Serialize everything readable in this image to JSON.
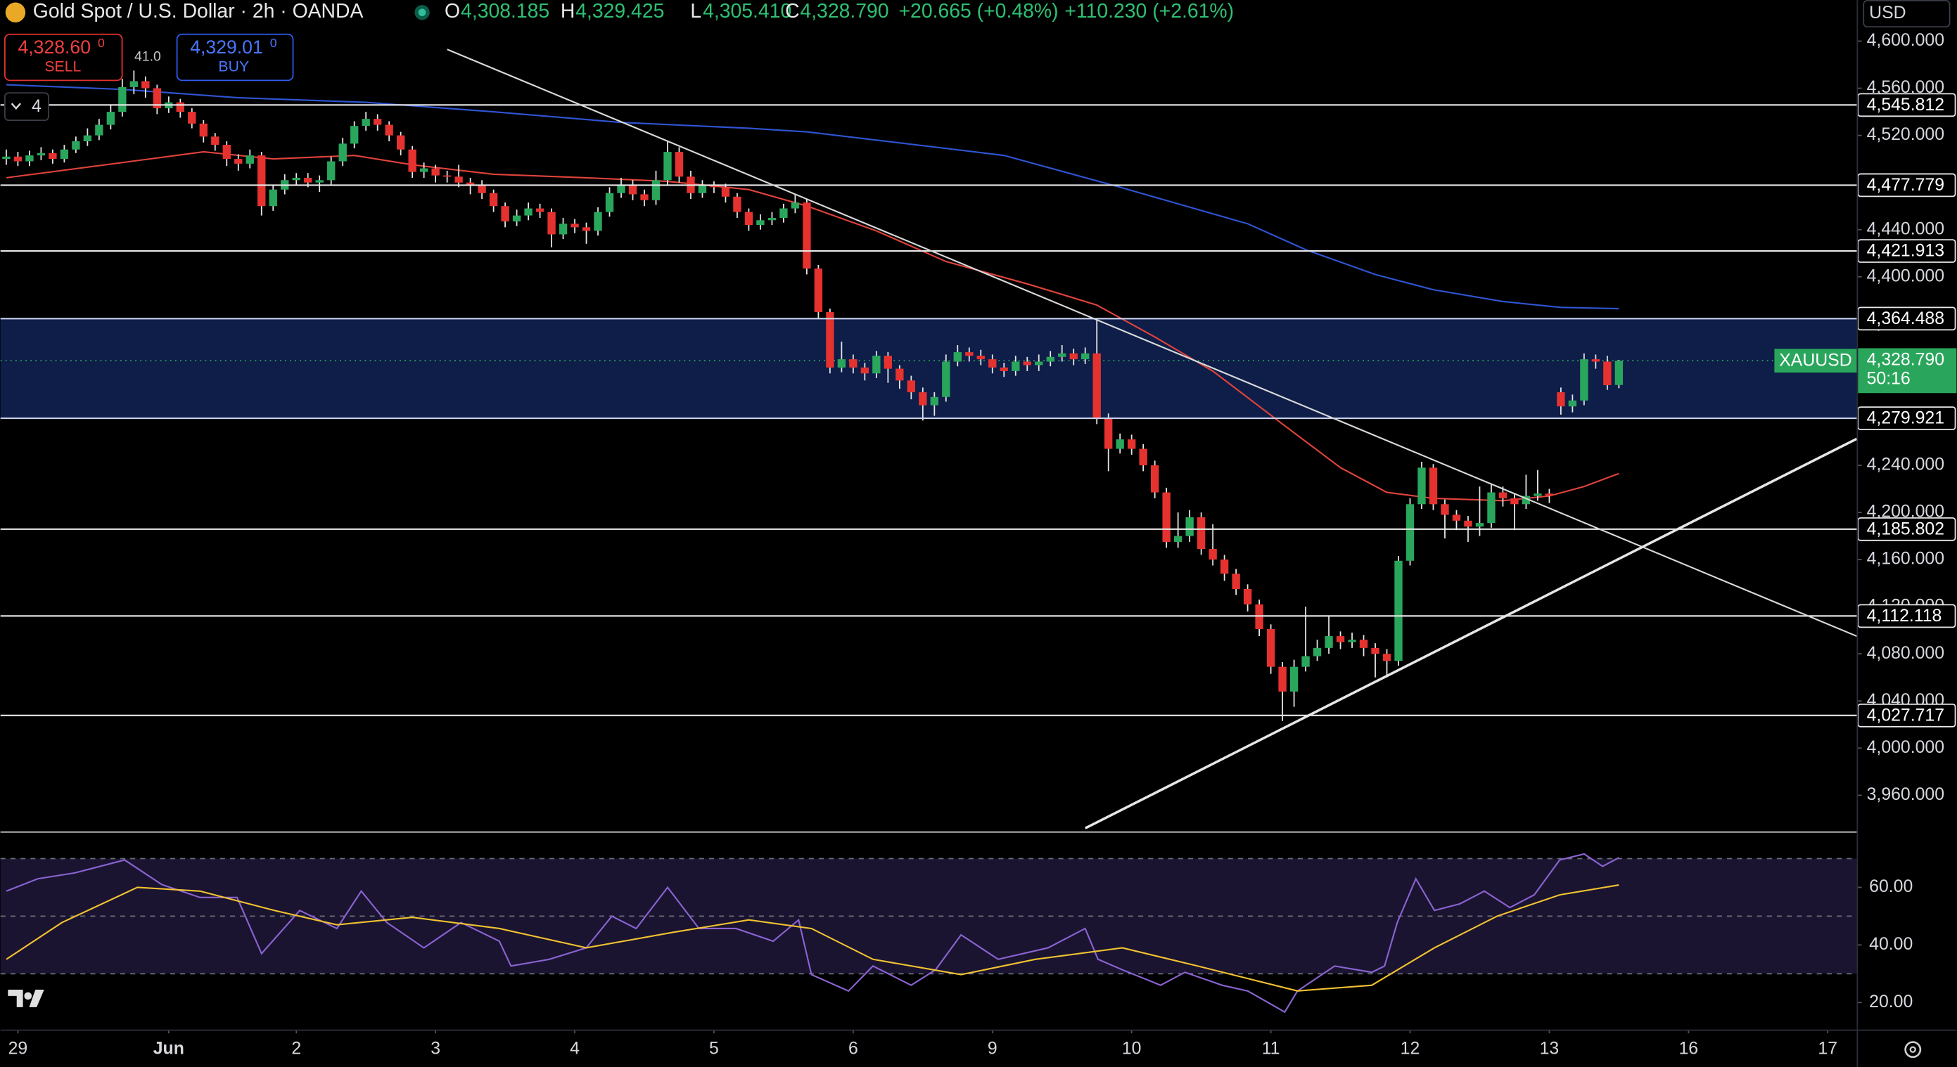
{
  "header": {
    "symbol_title": "Gold Spot / U.S. Dollar · 2h · OANDA",
    "ohlc": [
      {
        "key": "O",
        "value": "4,308.185"
      },
      {
        "key": "H",
        "value": "4,329.425"
      },
      {
        "key": "L",
        "value": "4,305.410"
      },
      {
        "key": "C",
        "value": "4,328.790"
      }
    ],
    "change": "+20.665 (+0.48%)",
    "change_2": "+110.230 (+2.61%)"
  },
  "trade": {
    "sell_price": "4,328.60",
    "sell_digit": "0",
    "sell": "SELL",
    "spread": "41.0",
    "buy_price": "4,329.01",
    "buy_digit": "0",
    "buy": "BUY"
  },
  "indicators_toggle": "4",
  "currency": "USD",
  "chart_data": [
    {
      "type": "candlestick",
      "up_color": "#2aa65c",
      "down_color": "#e5322f",
      "open": [
        4500,
        4502,
        4498,
        4503,
        4505,
        4500,
        4508,
        4515,
        4520,
        4529,
        4540,
        4561,
        4566,
        4560,
        4543,
        4548,
        4540,
        4530,
        4519,
        4512,
        4500,
        4496,
        4503,
        4460,
        4474,
        4482,
        4484,
        4480,
        4482,
        4498,
        4513,
        4528,
        4534,
        4529,
        4520,
        4508,
        4489,
        4492,
        4486,
        4485,
        4480,
        4478,
        4471,
        4460,
        4447,
        4452,
        4458,
        4455,
        4436,
        4445,
        4442,
        4439,
        4455,
        4471,
        4478,
        4470,
        4465,
        4482,
        4506,
        4485,
        4471,
        4478,
        4476,
        4468,
        4455,
        4444,
        4448,
        4450,
        4458,
        4463,
        4407,
        4370,
        4323,
        4330,
        4323,
        4318,
        4333,
        4322,
        4312,
        4302,
        4291,
        4298,
        4328,
        4336,
        4333,
        4330,
        4323,
        4320,
        4328,
        4325,
        4328,
        4332,
        4335,
        4330,
        4335,
        4280,
        4254,
        4262,
        4254,
        4240,
        4217,
        4175,
        4180,
        4196,
        4169,
        4160,
        4148,
        4135,
        4122,
        4101,
        4069,
        4048,
        4069,
        4078,
        4085,
        4095,
        4090,
        4092,
        4085,
        4080,
        4074,
        4159,
        4207,
        4238,
        4207,
        4198,
        4193,
        4188,
        4191,
        4217,
        4212,
        4207,
        4214,
        4216,
        4302,
        4290,
        4295,
        4330,
        4328,
        4308.185
      ],
      "high": [
        4508,
        4506,
        4507,
        4510,
        4508,
        4512,
        4519,
        4526,
        4534,
        4546,
        4568,
        4575,
        4570,
        4563,
        4553,
        4551,
        4543,
        4533,
        4522,
        4515,
        4504,
        4508,
        4506,
        4478,
        4487,
        4488,
        4488,
        4486,
        4502,
        4518,
        4532,
        4540,
        4538,
        4532,
        4523,
        4511,
        4497,
        4495,
        4490,
        4495,
        4484,
        4482,
        4474,
        4463,
        4457,
        4463,
        4462,
        4458,
        4450,
        4449,
        4446,
        4459,
        4476,
        4484,
        4482,
        4474,
        4490,
        4515,
        4510,
        4490,
        4482,
        4481,
        4479,
        4471,
        4458,
        4453,
        4455,
        4462,
        4470,
        4466,
        4410,
        4373,
        4345,
        4334,
        4327,
        4337,
        4336,
        4325,
        4316,
        4306,
        4302,
        4334,
        4342,
        4340,
        4338,
        4334,
        4327,
        4333,
        4332,
        4334,
        4337,
        4342,
        4339,
        4340,
        4365,
        4284,
        4267,
        4266,
        4258,
        4244,
        4221,
        4200,
        4202,
        4200,
        4190,
        4164,
        4152,
        4139,
        4126,
        4105,
        4073,
        4075,
        4120,
        4092,
        4112,
        4099,
        4098,
        4096,
        4089,
        4084,
        4163,
        4212,
        4243,
        4241,
        4211,
        4202,
        4197,
        4222,
        4224,
        4222,
        4216,
        4232,
        4236,
        4220,
        4306,
        4300,
        4335,
        4334,
        4333,
        4329.425
      ],
      "low": [
        4495,
        4494,
        4494,
        4499,
        4496,
        4497,
        4505,
        4511,
        4516,
        4525,
        4536,
        4555,
        4552,
        4538,
        4539,
        4535,
        4526,
        4514,
        4507,
        4494,
        4490,
        4492,
        4452,
        4456,
        4470,
        4478,
        4476,
        4472,
        4478,
        4494,
        4509,
        4524,
        4524,
        4515,
        4503,
        4484,
        4484,
        4480,
        4480,
        4476,
        4470,
        4466,
        4455,
        4442,
        4443,
        4448,
        4450,
        4425,
        4432,
        4437,
        4428,
        4435,
        4451,
        4467,
        4465,
        4460,
        4461,
        4478,
        4480,
        4466,
        4467,
        4471,
        4463,
        4450,
        4439,
        4440,
        4444,
        4446,
        4454,
        4402,
        4365,
        4318,
        4319,
        4318,
        4312,
        4314,
        4310,
        4305,
        4296,
        4278,
        4282,
        4294,
        4324,
        4328,
        4325,
        4318,
        4315,
        4316,
        4320,
        4320,
        4324,
        4328,
        4325,
        4326,
        4275,
        4235,
        4250,
        4249,
        4235,
        4212,
        4170,
        4170,
        4175,
        4164,
        4155,
        4142,
        4130,
        4116,
        4095,
        4063,
        4023,
        4035,
        4065,
        4074,
        4080,
        4084,
        4085,
        4078,
        4060,
        4060,
        4070,
        4155,
        4203,
        4202,
        4178,
        4185,
        4175,
        4180,
        4187,
        4205,
        4185,
        4203,
        4210,
        4208,
        4283,
        4285,
        4291,
        4322,
        4304,
        4305.41
      ],
      "close": [
        4502,
        4498,
        4503,
        4505,
        4500,
        4508,
        4515,
        4520,
        4529,
        4540,
        4561,
        4566,
        4560,
        4543,
        4548,
        4540,
        4530,
        4519,
        4512,
        4500,
        4496,
        4503,
        4460,
        4474,
        4482,
        4484,
        4480,
        4482,
        4498,
        4513,
        4528,
        4534,
        4529,
        4520,
        4508,
        4489,
        4492,
        4486,
        4485,
        4480,
        4478,
        4471,
        4460,
        4447,
        4452,
        4458,
        4455,
        4436,
        4445,
        4442,
        4439,
        4455,
        4471,
        4478,
        4470,
        4465,
        4482,
        4506,
        4485,
        4471,
        4478,
        4476,
        4468,
        4455,
        4444,
        4448,
        4450,
        4458,
        4463,
        4407,
        4370,
        4323,
        4330,
        4323,
        4318,
        4333,
        4322,
        4312,
        4302,
        4291,
        4298,
        4328,
        4336,
        4333,
        4330,
        4323,
        4320,
        4328,
        4325,
        4328,
        4332,
        4335,
        4330,
        4335,
        4280,
        4254,
        4262,
        4254,
        4240,
        4217,
        4175,
        4180,
        4196,
        4169,
        4160,
        4148,
        4135,
        4122,
        4101,
        4069,
        4048,
        4069,
        4078,
        4085,
        4095,
        4090,
        4092,
        4085,
        4080,
        4074,
        4159,
        4207,
        4238,
        4207,
        4198,
        4193,
        4188,
        4191,
        4217,
        4212,
        4207,
        4214,
        4216,
        4214,
        4290,
        4295,
        4330,
        4328,
        4308,
        4328.79
      ],
      "xlim": [
        -0.5,
        159.5
      ],
      "xticks": [
        {
          "value": 1,
          "label": "29"
        },
        {
          "value": 14,
          "label": "Jun"
        },
        {
          "value": 25,
          "label": "2"
        },
        {
          "value": 37,
          "label": "3"
        },
        {
          "value": 49,
          "label": "4"
        },
        {
          "value": 61,
          "label": "5"
        },
        {
          "value": 73,
          "label": "6"
        },
        {
          "value": 85,
          "label": "9"
        },
        {
          "value": 97,
          "label": "10"
        },
        {
          "value": 109,
          "label": "11"
        },
        {
          "value": 121,
          "label": "12"
        },
        {
          "value": 133,
          "label": "13"
        },
        {
          "value": 145,
          "label": "16"
        },
        {
          "value": 157,
          "label": "17"
        }
      ],
      "ylim": [
        3929.3,
        4634.9
      ],
      "yticks": [
        {
          "value": 3960,
          "label": "3,960.000"
        },
        {
          "value": 4000,
          "label": "4,000.000"
        },
        {
          "value": 4040,
          "label": "4,040.000"
        },
        {
          "value": 4080,
          "label": "4,080.000"
        },
        {
          "value": 4120,
          "label": "4,120.000"
        },
        {
          "value": 4160,
          "label": "4,160.000"
        },
        {
          "value": 4200,
          "label": "4,200.000"
        },
        {
          "value": 4240,
          "label": "4,240.000"
        },
        {
          "value": 4280,
          "label": "4,280.000"
        },
        {
          "value": 4320,
          "label": "4,320.000"
        },
        {
          "value": 4360,
          "label": "4,360.000"
        },
        {
          "value": 4400,
          "label": "4,400.000"
        },
        {
          "value": 4440,
          "label": "4,440.000"
        },
        {
          "value": 4480,
          "label": "4,480.000"
        },
        {
          "value": 4520,
          "label": "4,520.000"
        },
        {
          "value": 4560,
          "label": "4,560.000"
        },
        {
          "value": 4600,
          "label": "4,600.000"
        }
      ],
      "grid": false,
      "levels": [
        {
          "value": 4545.812,
          "label": "4,545.812"
        },
        {
          "value": 4477.779,
          "label": "4,477.779"
        },
        {
          "value": 4421.913,
          "label": "4,421.913"
        },
        {
          "value": 4364.488,
          "label": "4,364.488",
          "zone": true
        },
        {
          "value": 4279.921,
          "label": "4,279.921",
          "zone": true
        },
        {
          "value": 4185.802,
          "label": "4,185.802"
        },
        {
          "value": 4112.118,
          "label": "4,112.118"
        },
        {
          "value": 4027.717,
          "label": "4,027.717"
        }
      ],
      "zone_color": "#0f2150",
      "overlays": [
        {
          "color": "#e0433b",
          "x": [
            0,
            10,
            17,
            23,
            30,
            35,
            42,
            50,
            57,
            64,
            69,
            75,
            81,
            88,
            94,
            99,
            104,
            110,
            115,
            119,
            123,
            129,
            133,
            136,
            139
          ],
          "values": [
            4484,
            4497,
            4506,
            4500,
            4503,
            4495,
            4487,
            4484,
            4481,
            4474,
            4460,
            4439,
            4413,
            4394,
            4376,
            4349,
            4320,
            4275,
            4238,
            4217,
            4212,
            4210,
            4214,
            4222,
            4233
          ]
        },
        {
          "color": "#2f55d4",
          "x": [
            0,
            10,
            20,
            31,
            42,
            53,
            64,
            69,
            75,
            86,
            96,
            107,
            112,
            118,
            123,
            129,
            134,
            139
          ],
          "values": [
            4563,
            4559,
            4552,
            4548,
            4540,
            4531,
            4526,
            4523,
            4516,
            4503,
            4476,
            4445,
            4423,
            4402,
            4389,
            4379,
            4374,
            4373
          ]
        }
      ],
      "trendlines": [
        {
          "color": "#d8d8d8",
          "x": [
            38,
            159.5
          ],
          "values": [
            4593,
            4095
          ]
        },
        {
          "color": "#e6e6e6",
          "x": [
            93,
            159.5
          ],
          "values": [
            3932,
            4262.5
          ]
        }
      ],
      "last_price": {
        "symbol": "XAUUSD",
        "label": "4,328.790",
        "countdown": "50:16",
        "color": "#2aa65c"
      }
    },
    {
      "type": "line",
      "xlim": [
        -0.5,
        159.5
      ],
      "ylim": [
        10.6,
        79
      ],
      "yticks": [
        {
          "value": 20,
          "label": "20.00"
        },
        {
          "value": 40,
          "label": "40.00"
        },
        {
          "value": 60,
          "label": "60.00"
        }
      ],
      "bands": [
        70,
        50,
        30
      ],
      "band_fill": "#1a1430",
      "series": [
        {
          "color": "#8a63d2",
          "x": [
            0,
            2.7,
            5.9,
            10.2,
            13.4,
            16.7,
            19.9,
            22,
            25.3,
            28.5,
            30.6,
            32.8,
            36,
            39.2,
            42.5,
            43.5,
            46.8,
            50,
            52.2,
            54.3,
            57,
            59.7,
            62.9,
            66.1,
            68.3,
            69.4,
            72.6,
            74.7,
            78,
            80.1,
            82.3,
            85.5,
            89.8,
            93,
            94.1,
            96.2,
            99.5,
            101.6,
            104.8,
            107,
            110.2,
            111.3,
            114.5,
            117.7,
            118.8,
            119.9,
            121.5,
            123.1,
            125.3,
            127.4,
            129.6,
            131.7,
            133.9,
            136,
            137.6,
            139
          ],
          "values": [
            58.7,
            63,
            65,
            69.5,
            61,
            56.5,
            56.5,
            37,
            52,
            45.7,
            58.7,
            47.8,
            39,
            47.8,
            41.3,
            32.7,
            35,
            39,
            50,
            45.7,
            60,
            45.7,
            45.7,
            41.3,
            48.7,
            29.7,
            24,
            32.7,
            26,
            31.4,
            43.5,
            35,
            39,
            45.7,
            35,
            31.4,
            26,
            30.5,
            26,
            24,
            16.7,
            24,
            32.7,
            30.5,
            32.7,
            47.8,
            63,
            52,
            54.3,
            58.7,
            53,
            57.4,
            69.5,
            71.6,
            67.3,
            70.3
          ]
        },
        {
          "color": "#f2c230",
          "x": [
            0,
            4.8,
            11.3,
            16.7,
            23.1,
            28.5,
            35,
            42.5,
            50,
            57.5,
            64,
            69.4,
            74.7,
            82.3,
            88.7,
            96.2,
            102.7,
            111.3,
            117.7,
            123.1,
            128.5,
            133.9,
            139
          ],
          "values": [
            35,
            47.8,
            60,
            58.7,
            52,
            47,
            49.6,
            45.7,
            39,
            44.4,
            48.7,
            45.7,
            35,
            29.7,
            35,
            39,
            32.7,
            24,
            26,
            39,
            50,
            57.4,
            60.8
          ]
        }
      ]
    }
  ]
}
